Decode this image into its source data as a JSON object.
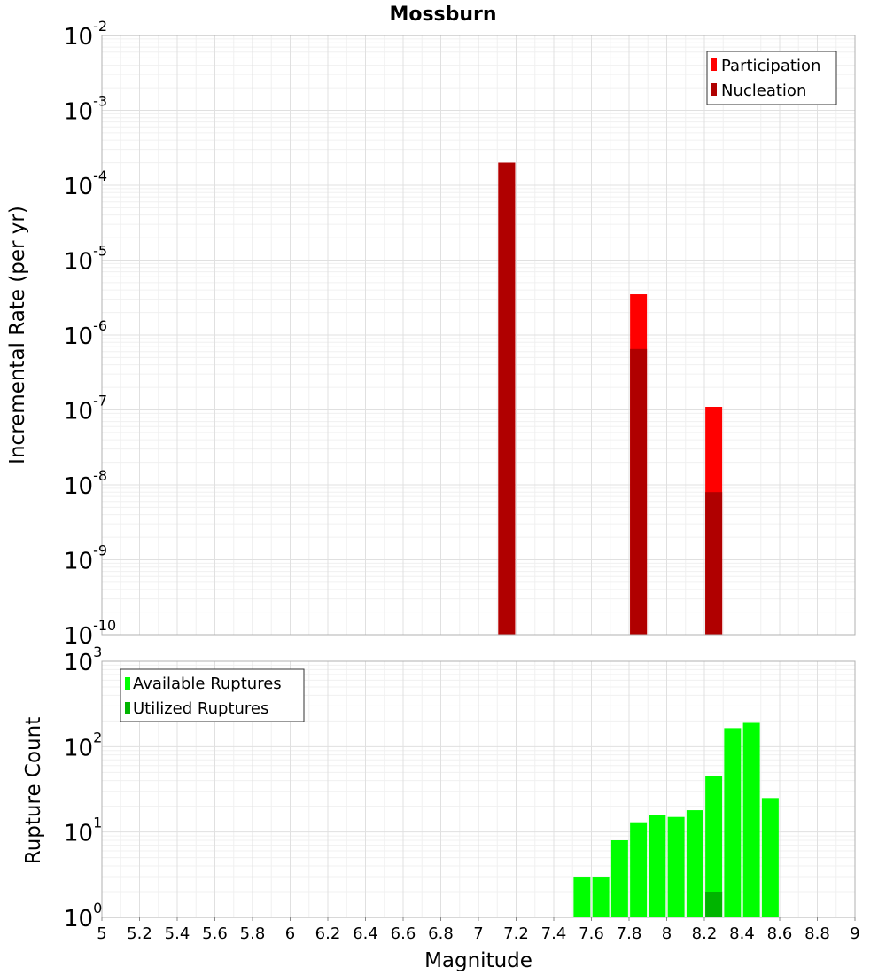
{
  "title": "Mossburn",
  "colors": {
    "participation": "#ff0000",
    "nucleation": "#b00000",
    "available": "#00ff00",
    "utilized": "#00b400",
    "grid_major": "#e0e0e0",
    "grid_minor": "#f0f0f0",
    "frame": "#b0b0b0"
  },
  "chart_data": [
    {
      "type": "bar",
      "ylabel": "Incremental Rate (per yr)",
      "yscale": "log",
      "ylim_exponents": [
        -10,
        -2
      ],
      "xlim": [
        5,
        9
      ],
      "grid": true,
      "legend": {
        "placement": "top-right",
        "entries": [
          "Participation",
          "Nucleation"
        ]
      },
      "series": [
        {
          "name": "Participation",
          "x": [
            7.15,
            7.85,
            8.25
          ],
          "values": [
            0.0002,
            3.5e-06,
            1.1e-07
          ]
        },
        {
          "name": "Nucleation",
          "x": [
            7.15,
            7.85,
            8.25
          ],
          "values": [
            0.0002,
            6.5e-07,
            8e-09
          ]
        }
      ]
    },
    {
      "type": "bar",
      "xlabel": "Magnitude",
      "ylabel": "Rupture Count",
      "yscale": "log",
      "ylim_exponents": [
        0,
        3
      ],
      "xlim": [
        5,
        9
      ],
      "xticks": [
        "5",
        "5.2",
        "5.4",
        "5.6",
        "5.8",
        "6",
        "6.2",
        "6.4",
        "6.6",
        "6.8",
        "7",
        "7.2",
        "7.4",
        "7.6",
        "7.8",
        "8",
        "8.2",
        "8.4",
        "8.6",
        "8.8",
        "9"
      ],
      "grid": true,
      "legend": {
        "placement": "top-left",
        "entries": [
          "Available Ruptures",
          "Utilized Ruptures"
        ]
      },
      "series": [
        {
          "name": "Available Ruptures",
          "x": [
            7.15,
            7.55,
            7.65,
            7.75,
            7.85,
            7.95,
            8.05,
            8.15,
            8.25,
            8.35,
            8.45,
            8.55
          ],
          "values": [
            1,
            3,
            3,
            8,
            13,
            16,
            15,
            18,
            45,
            165,
            190,
            25
          ]
        },
        {
          "name": "Utilized Ruptures",
          "x": [
            7.15,
            7.65,
            7.85,
            7.95,
            8.25
          ],
          "values": [
            1,
            1,
            1,
            1,
            2
          ]
        }
      ]
    }
  ]
}
